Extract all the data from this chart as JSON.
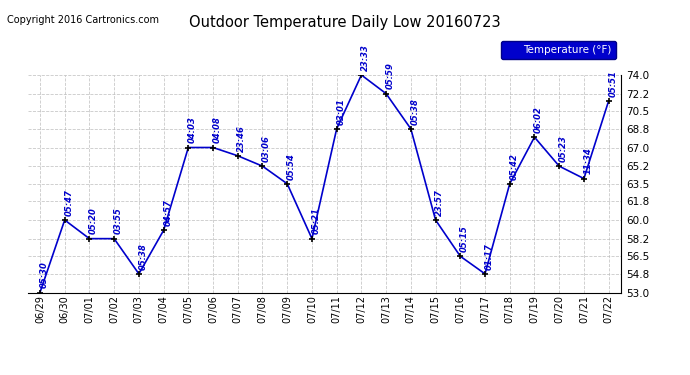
{
  "title": "Outdoor Temperature Daily Low 20160723",
  "copyright": "Copyright 2016 Cartronics.com",
  "legend_label": "Temperature (°F)",
  "x_labels": [
    "06/29",
    "06/30",
    "07/01",
    "07/02",
    "07/03",
    "07/04",
    "07/05",
    "07/06",
    "07/07",
    "07/08",
    "07/09",
    "07/10",
    "07/11",
    "07/12",
    "07/13",
    "07/14",
    "07/15",
    "07/16",
    "07/17",
    "07/18",
    "07/19",
    "07/20",
    "07/21",
    "07/22"
  ],
  "y_values": [
    53.0,
    60.0,
    58.2,
    58.2,
    54.8,
    59.0,
    67.0,
    67.0,
    66.2,
    65.2,
    63.5,
    58.2,
    68.8,
    74.0,
    72.2,
    68.8,
    60.0,
    56.5,
    54.8,
    63.5,
    68.0,
    65.2,
    64.0,
    71.5
  ],
  "point_labels": [
    "05:30",
    "05:47",
    "05:20",
    "03:55",
    "05:38",
    "04:57",
    "04:03",
    "04:08",
    "23:46",
    "03:06",
    "05:54",
    "05:21",
    "03:01",
    "23:33",
    "05:59",
    "05:38",
    "23:57",
    "05:15",
    "01:17",
    "05:42",
    "06:02",
    "05:23",
    "11:34",
    "05:51"
  ],
  "ylim": [
    53.0,
    74.0
  ],
  "yticks": [
    53.0,
    54.8,
    56.5,
    58.2,
    60.0,
    61.8,
    63.5,
    65.2,
    67.0,
    68.8,
    70.5,
    72.2,
    74.0
  ],
  "line_color": "#0000cc",
  "marker_color": "#000000",
  "bg_color": "#ffffff",
  "grid_color": "#bbbbbb",
  "title_color": "#000000",
  "label_color": "#0000cc",
  "legend_bg": "#0000cc",
  "legend_text": "#ffffff"
}
